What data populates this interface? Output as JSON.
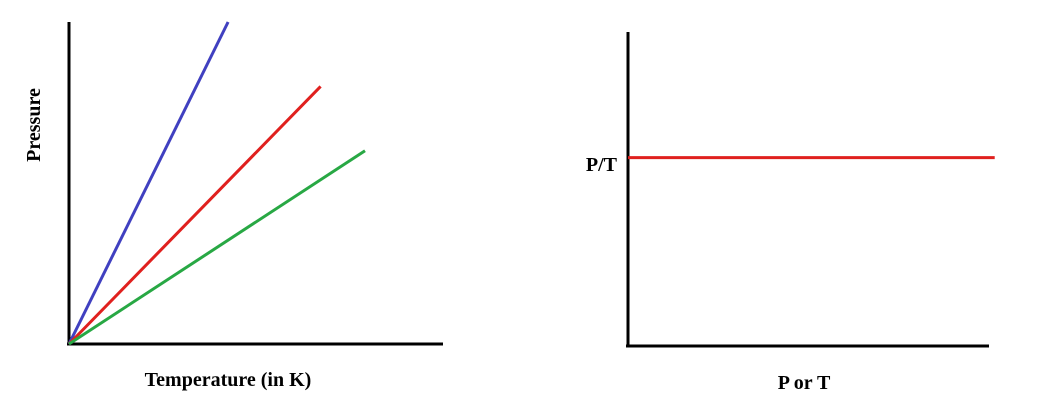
{
  "chart_data": [
    {
      "type": "line",
      "title": "",
      "xlabel": "Temperature (in K)",
      "ylabel": "Pressure",
      "grid": false,
      "xlim": [
        0,
        10
      ],
      "ylim": [
        0,
        10
      ],
      "series": [
        {
          "color": "#4040c0",
          "x": [
            0,
            4.3
          ],
          "y": [
            0,
            10
          ]
        },
        {
          "color": "#e0201e",
          "x": [
            0,
            6.8
          ],
          "y": [
            0,
            8
          ]
        },
        {
          "color": "#28a844",
          "x": [
            0,
            8.0
          ],
          "y": [
            0,
            6
          ]
        }
      ]
    },
    {
      "type": "line",
      "title": "",
      "xlabel": "P or T",
      "ylabel": "",
      "y_tick_label": "P/T",
      "grid": false,
      "xlim": [
        0,
        10
      ],
      "ylim": [
        0,
        10
      ],
      "series": [
        {
          "color": "#e0201e",
          "x": [
            0,
            9.7
          ],
          "y": [
            6,
            6
          ]
        }
      ]
    }
  ]
}
